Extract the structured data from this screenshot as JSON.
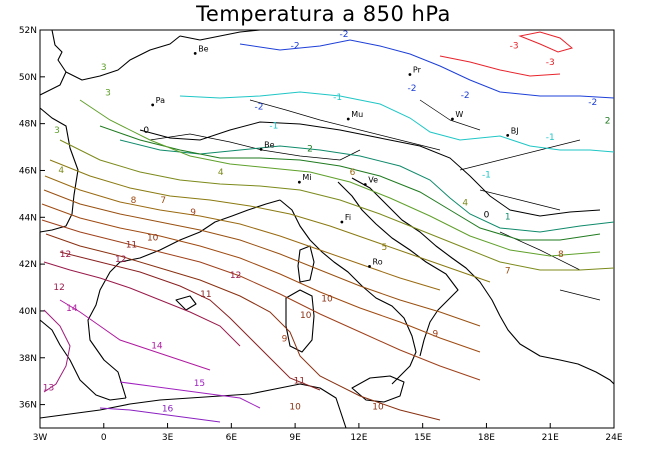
{
  "title": "Temperatura a 850 hPa",
  "lon_ticks": [
    {
      "label": "3W",
      "lon": -3
    },
    {
      "label": "0",
      "lon": 0
    },
    {
      "label": "3E",
      "lon": 3
    },
    {
      "label": "6E",
      "lon": 6
    },
    {
      "label": "9E",
      "lon": 9
    },
    {
      "label": "12E",
      "lon": 12
    },
    {
      "label": "15E",
      "lon": 15
    },
    {
      "label": "18E",
      "lon": 18
    },
    {
      "label": "21E",
      "lon": 21
    },
    {
      "label": "24E",
      "lon": 24
    }
  ],
  "lat_ticks": [
    {
      "label": "52N",
      "lat": 52
    },
    {
      "label": "50N",
      "lat": 50
    },
    {
      "label": "48N",
      "lat": 48
    },
    {
      "label": "46N",
      "lat": 46
    },
    {
      "label": "44N",
      "lat": 44
    },
    {
      "label": "42N",
      "lat": 42
    },
    {
      "label": "40N",
      "lat": 40
    },
    {
      "label": "38N",
      "lat": 38
    },
    {
      "label": "36N",
      "lat": 36
    }
  ],
  "extent": {
    "lon_min": -3,
    "lon_max": 24,
    "lat_min": 35,
    "lat_max": 52
  },
  "city_markers": [
    {
      "label": "Be",
      "lon": 4.3,
      "lat": 51.0
    },
    {
      "label": "Pr",
      "lon": 14.4,
      "lat": 50.1
    },
    {
      "label": "Pa",
      "lon": 2.3,
      "lat": 48.8
    },
    {
      "label": "Mu",
      "lon": 11.5,
      "lat": 48.2
    },
    {
      "label": "W",
      "lon": 16.4,
      "lat": 48.2
    },
    {
      "label": "BJ",
      "lon": 19.0,
      "lat": 47.5
    },
    {
      "label": "Be",
      "lon": 7.4,
      "lat": 46.9
    },
    {
      "label": "Mi",
      "lon": 9.2,
      "lat": 45.5
    },
    {
      "label": "Ve",
      "lon": 12.3,
      "lat": 45.4
    },
    {
      "label": "Fi",
      "lon": 11.2,
      "lat": 43.8
    },
    {
      "label": "Ro",
      "lon": 12.5,
      "lat": 41.9
    }
  ],
  "contour_colors": {
    "-3": "#e8232b",
    "-2": "#1d3fd8",
    "-1": "#1fc6c6",
    "0": "#000000",
    "1": "#0f8a6a",
    "2": "#1f7a1f",
    "3": "#5fa02a",
    "4": "#7c8a1a",
    "5": "#8a7a10",
    "6": "#9a6a10",
    "7": "#9a5010",
    "8": "#a04a10",
    "9": "#a0401a",
    "10": "#8a3010",
    "11": "#8a2020",
    "12": "#9a1a4a",
    "13": "#a01a7a",
    "14": "#b01aa0",
    "15": "#a020c0",
    "16": "#8a20c0"
  },
  "contour_labels": [
    {
      "text": "-3",
      "lon": 19.3,
      "lat": 51.2
    },
    {
      "text": "-3",
      "lon": 21.0,
      "lat": 50.5
    },
    {
      "text": "-2",
      "lon": 11.3,
      "lat": 51.7
    },
    {
      "text": "-2",
      "lon": 9.0,
      "lat": 51.2
    },
    {
      "text": "-2",
      "lon": 14.5,
      "lat": 49.4
    },
    {
      "text": "-2",
      "lon": 17.0,
      "lat": 49.1
    },
    {
      "text": "-2",
      "lon": 23.0,
      "lat": 48.8
    },
    {
      "text": "-2",
      "lon": 7.3,
      "lat": 48.6
    },
    {
      "text": "-1",
      "lon": 11.0,
      "lat": 49.0
    },
    {
      "text": "-1",
      "lon": 8.0,
      "lat": 47.8
    },
    {
      "text": "-1",
      "lon": 21.0,
      "lat": 47.3
    },
    {
      "text": "-1",
      "lon": 18.0,
      "lat": 45.7
    },
    {
      "text": "0",
      "lon": 2.0,
      "lat": 47.6
    },
    {
      "text": "0",
      "lon": 18.0,
      "lat": 44.0
    },
    {
      "text": "1",
      "lon": 19.0,
      "lat": 43.9
    },
    {
      "text": "2",
      "lon": 9.7,
      "lat": 46.8
    },
    {
      "text": "2",
      "lon": 23.7,
      "lat": 48.0
    },
    {
      "text": "3",
      "lon": -2.2,
      "lat": 47.6
    },
    {
      "text": "3",
      "lon": 0.0,
      "lat": 50.3
    },
    {
      "text": "3",
      "lon": 0.2,
      "lat": 49.2
    },
    {
      "text": "4",
      "lon": -2.0,
      "lat": 45.9
    },
    {
      "text": "4",
      "lon": 5.5,
      "lat": 45.8
    },
    {
      "text": "4",
      "lon": 17.0,
      "lat": 44.5
    },
    {
      "text": "5",
      "lon": 13.2,
      "lat": 42.6
    },
    {
      "text": "6",
      "lon": 11.7,
      "lat": 45.8
    },
    {
      "text": "7",
      "lon": 2.8,
      "lat": 44.6
    },
    {
      "text": "7",
      "lon": 19.0,
      "lat": 41.6
    },
    {
      "text": "8",
      "lon": 1.4,
      "lat": 44.6
    },
    {
      "text": "8",
      "lon": 21.5,
      "lat": 42.3
    },
    {
      "text": "9",
      "lon": 4.2,
      "lat": 44.1
    },
    {
      "text": "9",
      "lon": 15.6,
      "lat": 38.9
    },
    {
      "text": "9",
      "lon": 8.5,
      "lat": 38.7
    },
    {
      "text": "10",
      "lon": 2.3,
      "lat": 43.0
    },
    {
      "text": "10",
      "lon": 10.5,
      "lat": 40.4
    },
    {
      "text": "10",
      "lon": 9.5,
      "lat": 39.7
    },
    {
      "text": "10",
      "lon": 9.0,
      "lat": 35.8
    },
    {
      "text": "10",
      "lon": 12.9,
      "lat": 35.8
    },
    {
      "text": "11",
      "lon": 1.3,
      "lat": 42.7
    },
    {
      "text": "11",
      "lon": 4.8,
      "lat": 40.6
    },
    {
      "text": "11",
      "lon": 9.2,
      "lat": 36.9
    },
    {
      "text": "12",
      "lon": -1.8,
      "lat": 42.3
    },
    {
      "text": "12",
      "lon": 0.8,
      "lat": 42.1
    },
    {
      "text": "12",
      "lon": 6.2,
      "lat": 41.4
    },
    {
      "text": "12",
      "lon": -2.1,
      "lat": 40.9
    },
    {
      "text": "13",
      "lon": -2.6,
      "lat": 36.6
    },
    {
      "text": "14",
      "lon": -1.5,
      "lat": 40.0
    },
    {
      "text": "14",
      "lon": 2.5,
      "lat": 38.4
    },
    {
      "text": "15",
      "lon": 4.5,
      "lat": 36.8
    },
    {
      "text": "16",
      "lon": 3.0,
      "lat": 35.7
    }
  ]
}
